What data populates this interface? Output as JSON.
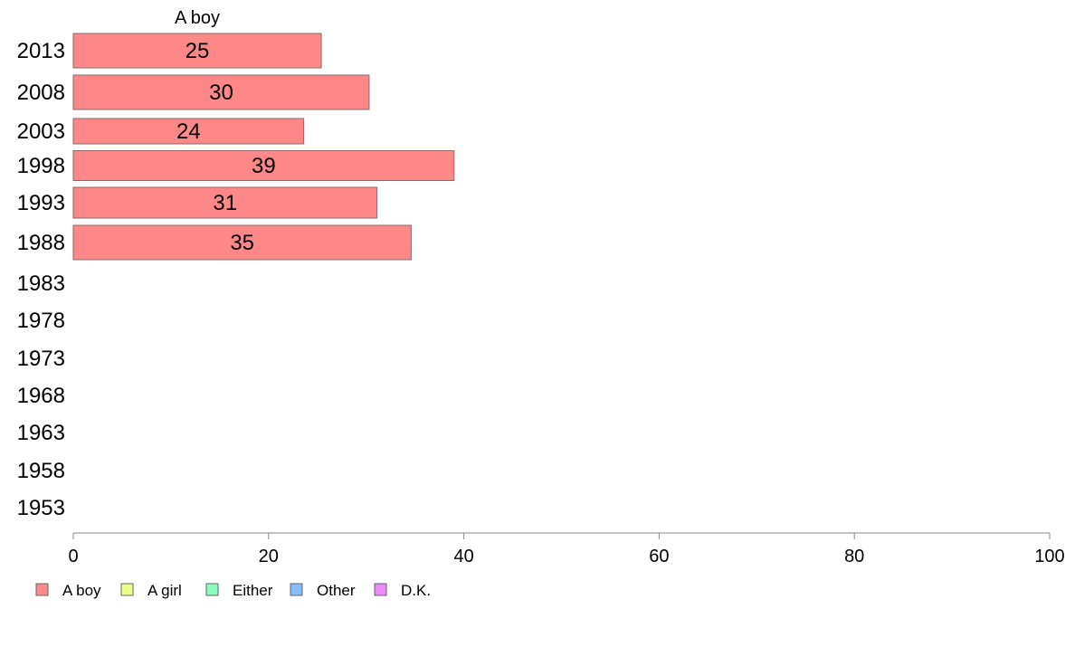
{
  "chart_data": {
    "type": "bar",
    "orientation": "horizontal",
    "series_label": "A boy",
    "categories": [
      "2013",
      "2008",
      "2003",
      "1998",
      "1993",
      "1988",
      "1983",
      "1978",
      "1973",
      "1968",
      "1963",
      "1958",
      "1953"
    ],
    "values": [
      25.4,
      30.3,
      23.6,
      39.0,
      31.1,
      34.6,
      null,
      null,
      null,
      null,
      null,
      null,
      null
    ],
    "data_labels": [
      "25",
      "30",
      "24",
      "39",
      "31",
      "35",
      "",
      "",
      "",
      "",
      "",
      "",
      ""
    ],
    "xlim": [
      0,
      100
    ],
    "x_ticks": [
      0,
      20,
      40,
      60,
      80,
      100
    ],
    "grid": false,
    "legend": {
      "position": "bottom-left",
      "entries": [
        {
          "name": "A boy",
          "color": "#ff8888"
        },
        {
          "name": "A girl",
          "color": "#eeff88"
        },
        {
          "name": "Either",
          "color": "#88ffbb"
        },
        {
          "name": "Other",
          "color": "#88bbff"
        },
        {
          "name": "D.K.",
          "color": "#ee88ff"
        }
      ]
    },
    "bar_color": "#ff8888"
  }
}
